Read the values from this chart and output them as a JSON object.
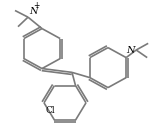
{
  "bg_color": "#ffffff",
  "line_color": "#7a7a7a",
  "text_color": "#000000",
  "line_width": 1.2,
  "font_size": 6.5,
  "figsize": [
    1.5,
    1.39
  ],
  "dpi": 100,
  "xlim": [
    0,
    150
  ],
  "ylim": [
    0,
    139
  ]
}
